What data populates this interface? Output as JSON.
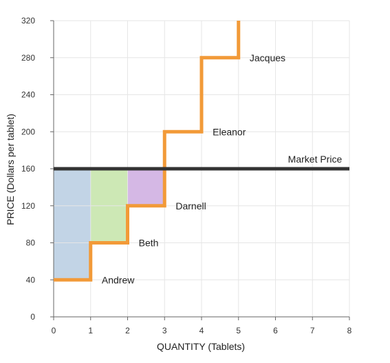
{
  "chart_data": {
    "type": "line",
    "xlabel": "QUANTITY (Tablets)",
    "ylabel": "PRICE (Dollars per tablet)",
    "xlim": [
      0,
      8
    ],
    "ylim": [
      0,
      320
    ],
    "x_ticks": [
      0,
      1,
      2,
      3,
      4,
      5,
      6,
      7,
      8
    ],
    "y_ticks": [
      0,
      40,
      80,
      120,
      160,
      200,
      240,
      280,
      320
    ],
    "grid": true,
    "series": [
      {
        "type": "step",
        "color": "#f29a38",
        "points": [
          {
            "x": 0,
            "y": 40
          },
          {
            "x": 1,
            "y": 40
          },
          {
            "x": 1,
            "y": 80
          },
          {
            "x": 2,
            "y": 80
          },
          {
            "x": 2,
            "y": 120
          },
          {
            "x": 3,
            "y": 120
          },
          {
            "x": 3,
            "y": 200
          },
          {
            "x": 4,
            "y": 200
          },
          {
            "x": 4,
            "y": 280
          },
          {
            "x": 5,
            "y": 280
          },
          {
            "x": 5,
            "y": 320
          }
        ]
      },
      {
        "name": "Market Price",
        "type": "hline",
        "y": 160,
        "x_range": [
          0,
          8
        ],
        "color": "#333333"
      }
    ],
    "surplus_areas": [
      {
        "x0": 0,
        "x1": 1,
        "y0": 40,
        "y1": 160,
        "color": "#c2d4e6"
      },
      {
        "x0": 1,
        "x1": 2,
        "y0": 80,
        "y1": 160,
        "color": "#cde8b5"
      },
      {
        "x0": 2,
        "x1": 3,
        "y0": 120,
        "y1": 160,
        "color": "#d5b8e5"
      }
    ],
    "annotations": [
      {
        "text": "Andrew",
        "x": 1.3,
        "y": 40
      },
      {
        "text": "Beth",
        "x": 2.3,
        "y": 80
      },
      {
        "text": "Darnell",
        "x": 3.3,
        "y": 120
      },
      {
        "text": "Eleanor",
        "x": 4.3,
        "y": 200
      },
      {
        "text": "Jacques",
        "x": 5.3,
        "y": 280
      },
      {
        "text": "Market Price",
        "x": 7.8,
        "y": 160
      }
    ]
  }
}
